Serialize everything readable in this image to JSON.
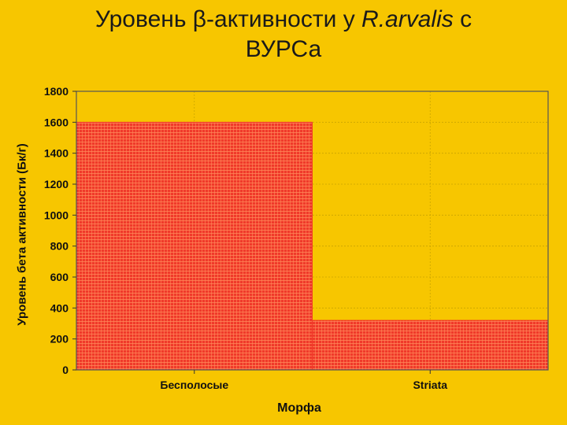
{
  "title": {
    "part1": "Уровень β-активности у ",
    "species": "R.arvalis",
    "part2": " с",
    "line2": "ВУРСа"
  },
  "chart_data": {
    "type": "bar",
    "categories": [
      "Бесполосые",
      "Striata"
    ],
    "values": [
      1600,
      320
    ],
    "xlabel": "Морфа",
    "ylabel": "Уровень бета активности (Бк/г)",
    "ylim": [
      0,
      1800
    ],
    "yticks": [
      0,
      200,
      400,
      600,
      800,
      1000,
      1200,
      1400,
      1600,
      1800
    ],
    "yticks_labels": [
      "0",
      "200",
      "400",
      "600",
      "800",
      "1000",
      "1200",
      "1400",
      "1600",
      "1800"
    ],
    "grid": true,
    "bar_color": "#f03a2a",
    "plot_background": "#f7c600"
  }
}
